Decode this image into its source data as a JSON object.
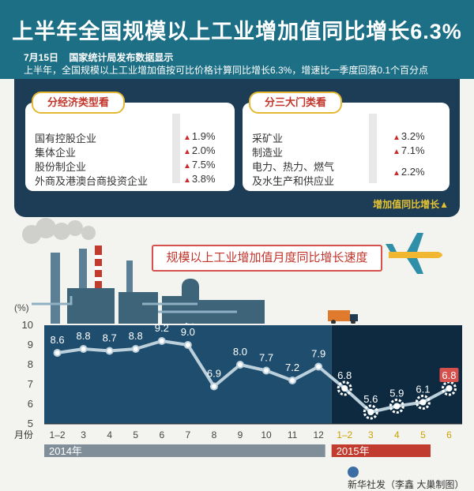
{
  "header": {
    "title": "上半年全国规模以上工业增加值同比增长6.3%",
    "date": "7月15日",
    "source": "国家统计局发布数据显示",
    "summary": "上半年，全国规模以上工业增加值按可比价格计算同比增长6.3%，增速比一季度回落0.1个百分点"
  },
  "panels": {
    "economic_type": {
      "title": "分经济类型看",
      "items": [
        {
          "name": "国有控股企业",
          "value": "1.9%"
        },
        {
          "name": "集体企业",
          "value": "2.0%"
        },
        {
          "name": "股份制企业",
          "value": "7.5%"
        },
        {
          "name": "外商及港澳台商投资企业",
          "value": "3.8%"
        }
      ]
    },
    "three_sectors": {
      "title": "分三大门类看",
      "items": [
        {
          "name": "采矿业",
          "value": "3.2%"
        },
        {
          "name": "制造业",
          "value": "7.1%"
        },
        {
          "name": "电力、热力、燃气",
          "value": ""
        },
        {
          "name": "及水生产和供应业",
          "value": "2.2%"
        }
      ]
    },
    "legend": "增加值同比增长▲"
  },
  "chart_data": {
    "type": "line",
    "title": "规模以上工业增加值月度同比增长速度",
    "ylabel": "(%)",
    "xlabel": "月份",
    "ylim": [
      5,
      10
    ],
    "yticks": [
      "5",
      "6",
      "7",
      "8",
      "9",
      "10"
    ],
    "categories": [
      "1–2",
      "3",
      "4",
      "5",
      "6",
      "7",
      "8",
      "9",
      "10",
      "11",
      "12",
      "1–2",
      "3",
      "4",
      "5",
      "6"
    ],
    "values": [
      8.6,
      8.8,
      8.7,
      8.8,
      9.2,
      9.0,
      6.9,
      8.0,
      7.7,
      7.2,
      7.9,
      6.8,
      5.6,
      5.9,
      6.1,
      6.8
    ],
    "labels": [
      "8.6",
      "8.8",
      "8.7",
      "8.8",
      "9.2",
      "9.0",
      "6.9",
      "8.0",
      "7.7",
      "7.2",
      "7.9",
      "6.8",
      "5.6",
      "5.9",
      "6.1",
      "6.8"
    ],
    "year_labels": [
      "2014年",
      "2015年"
    ],
    "year_split_index": 11,
    "colors": {
      "plot_2014": "#1f4d6e",
      "plot_2015": "#0e2a40",
      "line": "#bcd0dc",
      "highlight": "#e2d34a",
      "latest": "#d6504d"
    }
  },
  "footer": {
    "credit": "新华社发（李鑫 大巢制图）"
  }
}
